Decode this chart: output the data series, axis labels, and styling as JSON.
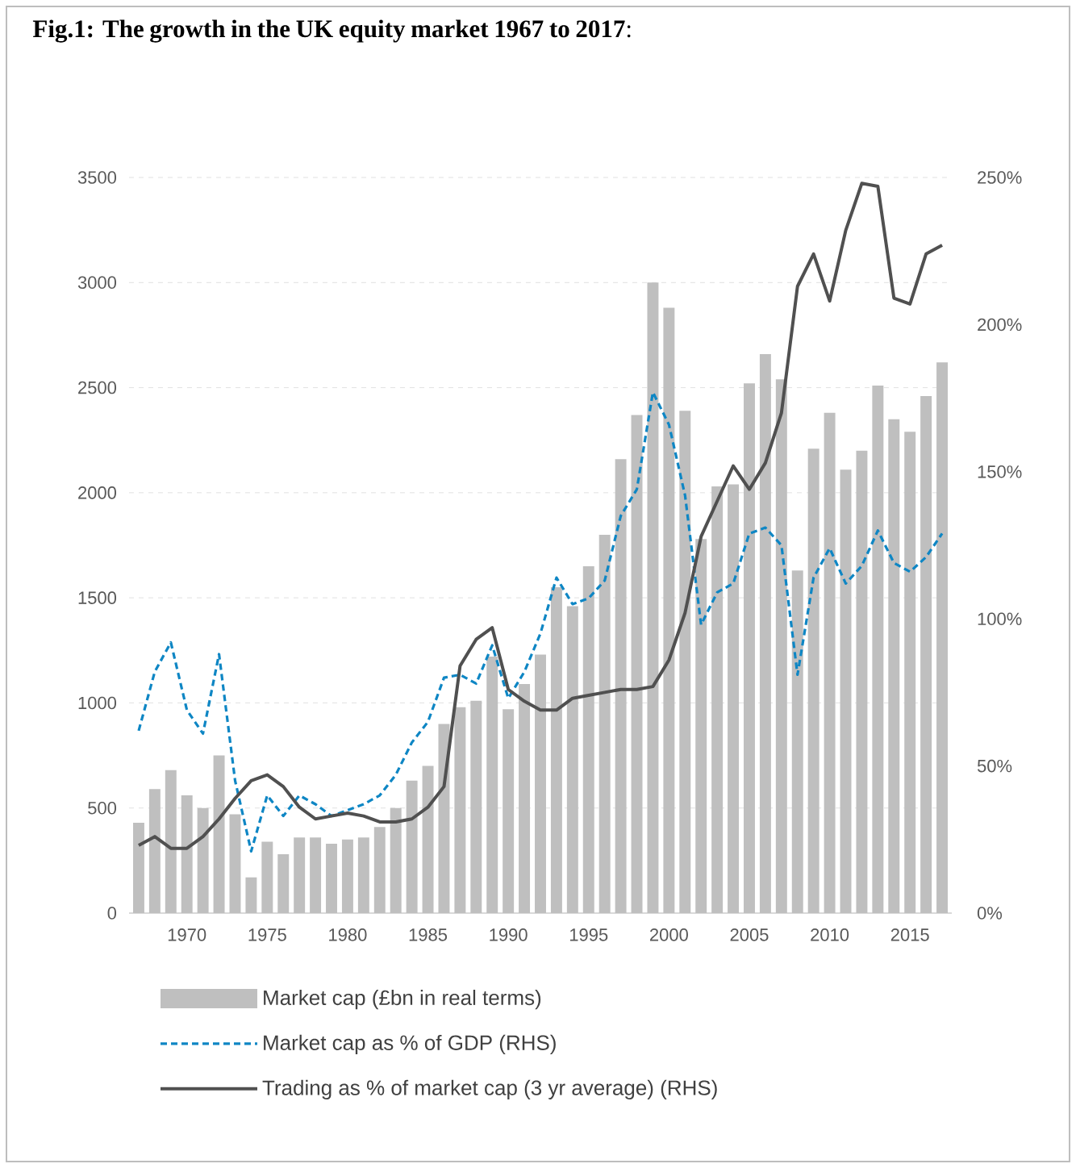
{
  "chart_data": {
    "type": "bar",
    "title": "**Fig.1:  The growth in the UK equity market 1967 to 2017**:",
    "x": [
      1967,
      1968,
      1969,
      1970,
      1971,
      1972,
      1973,
      1974,
      1975,
      1976,
      1977,
      1978,
      1979,
      1980,
      1981,
      1982,
      1983,
      1984,
      1985,
      1986,
      1987,
      1988,
      1989,
      1990,
      1991,
      1992,
      1993,
      1994,
      1995,
      1996,
      1997,
      1998,
      1999,
      2000,
      2001,
      2002,
      2003,
      2004,
      2005,
      2006,
      2007,
      2008,
      2009,
      2010,
      2011,
      2012,
      2013,
      2014,
      2015,
      2016,
      2017
    ],
    "xlim": [
      1966.4,
      2017.6
    ],
    "xticks": [
      1970,
      1975,
      1980,
      1985,
      1990,
      1995,
      2000,
      2005,
      2010,
      2015
    ],
    "ylim": [
      0,
      3500
    ],
    "yticks": [
      0,
      500,
      1000,
      1500,
      2000,
      2500,
      3000,
      3500
    ],
    "y2lim": [
      0,
      250
    ],
    "y2ticks": [
      {
        "value": 0,
        "label": "0%"
      },
      {
        "value": 50,
        "label": "50%"
      },
      {
        "value": 100,
        "label": "100%"
      },
      {
        "value": 150,
        "label": "150%"
      },
      {
        "value": 200,
        "label": "200%"
      },
      {
        "value": 250,
        "label": "250%"
      }
    ],
    "grid": "y",
    "legend": "bottom",
    "series": [
      {
        "name": "Market cap (£bn in real terms)",
        "color": "#bfbfbf",
        "values": [
          430,
          590,
          680,
          560,
          500,
          750,
          470,
          170,
          340,
          280,
          360,
          360,
          330,
          350,
          360,
          410,
          500,
          630,
          700,
          900,
          980,
          1010,
          1220,
          970,
          1090,
          1230,
          1550,
          1460,
          1650,
          1800,
          2160,
          2370,
          3000,
          2880,
          2390,
          1780,
          2030,
          2040,
          2520,
          2660,
          2540,
          1630,
          2210,
          2380,
          2110,
          2200,
          2510,
          2350,
          2290,
          2460,
          2620
        ]
      },
      {
        "name": "Market cap as % of GDP (RHS)",
        "type": "line",
        "axis": "y2",
        "line_style": "dashed",
        "color": "#0e86c4",
        "values": [
          62,
          82,
          92,
          69,
          61,
          88,
          45,
          21,
          40,
          33,
          40,
          37,
          33,
          35,
          37,
          40,
          47,
          58,
          65,
          80,
          81,
          78,
          91,
          73,
          82,
          95,
          114,
          105,
          107,
          113,
          135,
          144,
          177,
          166,
          142,
          98,
          109,
          112,
          129,
          131,
          125,
          81,
          114,
          124,
          112,
          118,
          130,
          119,
          116,
          121,
          129
        ]
      },
      {
        "name": "Trading as % of market cap (3 yr average) (RHS)",
        "type": "line",
        "axis": "y2",
        "line_style": "solid",
        "color": "#505050",
        "values": [
          23,
          26,
          22,
          22,
          26,
          32,
          39,
          45,
          47,
          43,
          36,
          32,
          33,
          34,
          33,
          31,
          31,
          32,
          36,
          43,
          84,
          93,
          97,
          76,
          72,
          69,
          69,
          73,
          74,
          75,
          76,
          76,
          77,
          86,
          102,
          128,
          140,
          152,
          144,
          153,
          170,
          213,
          224,
          208,
          232,
          248,
          247,
          209,
          207,
          224,
          227
        ]
      }
    ]
  }
}
